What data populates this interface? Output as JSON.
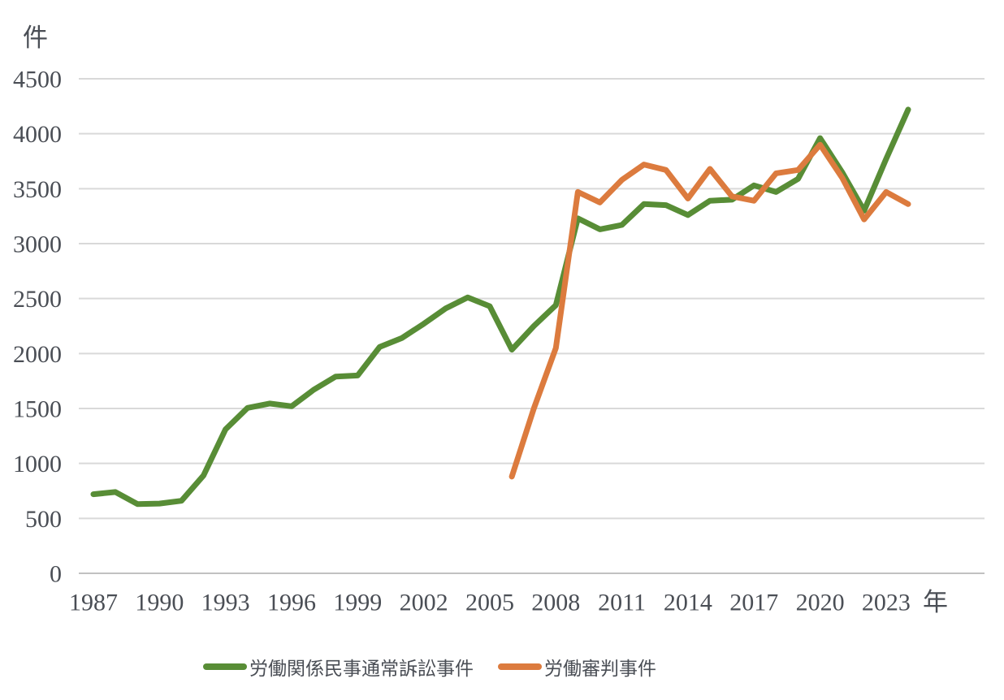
{
  "chart_data": {
    "type": "line",
    "title": "",
    "y_unit_label": "件",
    "x_unit_label": "年",
    "grid": true,
    "legend_position": "bottom",
    "xlim": [
      1987,
      2024
    ],
    "ylim": [
      0,
      4500
    ],
    "x_ticks": [
      1987,
      1990,
      1993,
      1996,
      1999,
      2002,
      2005,
      2008,
      2011,
      2014,
      2017,
      2020,
      2023
    ],
    "y_ticks": [
      0,
      500,
      1000,
      1500,
      2000,
      2500,
      3000,
      3500,
      4000,
      4500
    ],
    "colors": {
      "grid": "#d9d9d9",
      "axis": "#c1c1c1",
      "text": "#4a4e55"
    },
    "series": [
      {
        "name": "労働関係民事通常訴訟事件",
        "color": "#588d36",
        "x": [
          1987,
          1988,
          1989,
          1990,
          1991,
          1992,
          1993,
          1994,
          1995,
          1996,
          1997,
          1998,
          1999,
          2000,
          2001,
          2002,
          2003,
          2004,
          2005,
          2006,
          2007,
          2008,
          2009,
          2010,
          2011,
          2012,
          2013,
          2014,
          2015,
          2016,
          2017,
          2018,
          2019,
          2020,
          2021,
          2022,
          2023,
          2024
        ],
        "values": [
          720,
          740,
          630,
          635,
          660,
          890,
          1310,
          1505,
          1545,
          1520,
          1670,
          1790,
          1800,
          2060,
          2140,
          2270,
          2410,
          2510,
          2430,
          2035,
          2250,
          2440,
          3230,
          3130,
          3170,
          3360,
          3350,
          3260,
          3390,
          3400,
          3530,
          3470,
          3590,
          3960,
          3650,
          3300,
          3770,
          4220
        ]
      },
      {
        "name": "労働審判事件",
        "color": "#dc7b3e",
        "x": [
          2006,
          2007,
          2008,
          2009,
          2010,
          2011,
          2012,
          2013,
          2014,
          2015,
          2016,
          2017,
          2018,
          2019,
          2020,
          2021,
          2022,
          2023,
          2024
        ],
        "values": [
          880,
          1500,
          2050,
          3470,
          3375,
          3580,
          3720,
          3670,
          3410,
          3680,
          3430,
          3390,
          3640,
          3670,
          3900,
          3600,
          3220,
          3470,
          3360
        ]
      }
    ]
  }
}
